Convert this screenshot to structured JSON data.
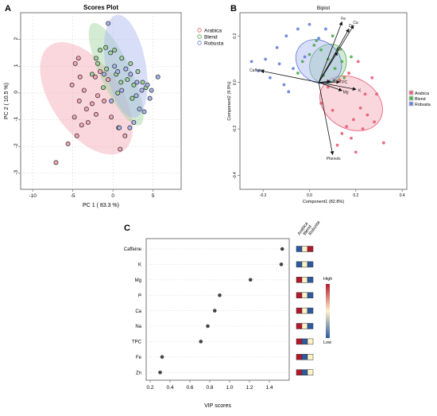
{
  "colors": {
    "arabica": "#e8546e",
    "blend": "#4aa84a",
    "robusta": "#5b79d6",
    "arabica_fill": "#f2a6b4",
    "blend_fill": "#9dd39d",
    "robusta_fill": "#a8b6ef",
    "vip_high": "#b2182b",
    "vip_mid": "#fff2c8",
    "vip_low": "#2c5aa0"
  },
  "chart_data": [
    {
      "type": "scatter",
      "panel_label": "A",
      "title": "Scores Plot",
      "xlabel": "PC 1 ( 83.3 %)",
      "ylabel": "PC 2 ( 10.5 %)",
      "xlim": [
        -11.5,
        8.5
      ],
      "ylim": [
        -3.6,
        3.0
      ],
      "xticks": [
        -10,
        -5,
        0,
        5
      ],
      "yticks": [
        -3,
        -2,
        -1,
        0,
        1,
        2
      ],
      "grid": true,
      "legend_position": "top-right",
      "legend": [
        "Arabica",
        "Blend",
        "Robusta"
      ],
      "ellipses": [
        {
          "group": "arabica",
          "cx": -3.3,
          "cy": -0.2,
          "rx": 8.6,
          "ry": 2.4,
          "angle_deg": 35
        },
        {
          "group": "blend",
          "cx": 0.4,
          "cy": 0.7,
          "rx": 3.8,
          "ry": 2.1,
          "angle_deg": 25
        },
        {
          "group": "robusta",
          "cx": 1.6,
          "cy": 1.0,
          "rx": 5.0,
          "ry": 1.95,
          "angle_deg": 10
        }
      ],
      "series": [
        {
          "group": "arabica",
          "points": [
            [
              -7.1,
              -2.6
            ],
            [
              -5.6,
              -1.9
            ],
            [
              -4.5,
              -1.6
            ],
            [
              -4.8,
              -0.9
            ],
            [
              -4.2,
              -0.3
            ],
            [
              -3.3,
              -0.6
            ],
            [
              -2.6,
              -0.4
            ],
            [
              -2.1,
              -0.8
            ],
            [
              -3.1,
              -1.1
            ],
            [
              -1.1,
              -0.3
            ],
            [
              -0.2,
              -0.9
            ],
            [
              0.7,
              -1.3
            ],
            [
              0.9,
              -2.1
            ],
            [
              1.5,
              -1.6
            ],
            [
              -1.9,
              -0.1
            ],
            [
              -4.1,
              0.6
            ],
            [
              -4.7,
              1.1
            ],
            [
              -4.3,
              1.3
            ],
            [
              -5.1,
              0.3
            ],
            [
              -3.6,
              0.1
            ],
            [
              -2.2,
              0.6
            ],
            [
              -1.6,
              0.8
            ],
            [
              -0.6,
              0.5
            ],
            [
              -3.9,
              -1.2
            ]
          ]
        },
        {
          "group": "blend",
          "points": [
            [
              -1.6,
              1.6
            ],
            [
              -0.9,
              1.7
            ],
            [
              -0.3,
              1.5
            ],
            [
              0.2,
              1.6
            ],
            [
              1.1,
              1.3
            ],
            [
              -2.6,
              0.7
            ],
            [
              -1.9,
              1.1
            ],
            [
              -0.8,
              0.9
            ],
            [
              0.4,
              0.7
            ],
            [
              1.0,
              0.4
            ],
            [
              1.8,
              0.5
            ],
            [
              2.6,
              0.3
            ],
            [
              3.1,
              0.8
            ],
            [
              3.7,
              0.4
            ],
            [
              4.1,
              0.2
            ],
            [
              2.4,
              -0.2
            ],
            [
              0.6,
              0.0
            ],
            [
              -1.2,
              0.2
            ],
            [
              -2.1,
              1.3
            ],
            [
              2.2,
              1.1
            ]
          ]
        },
        {
          "group": "robusta",
          "points": [
            [
              -0.6,
              2.6
            ],
            [
              0.2,
              1.0
            ],
            [
              0.6,
              0.8
            ],
            [
              1.6,
              0.9
            ],
            [
              2.2,
              0.7
            ],
            [
              3.0,
              0.4
            ],
            [
              3.6,
              0.1
            ],
            [
              4.3,
              0.3
            ],
            [
              4.8,
              0.1
            ],
            [
              5.6,
              0.6
            ],
            [
              3.3,
              -0.6
            ],
            [
              2.6,
              -1.1
            ],
            [
              2.1,
              -1.3
            ],
            [
              0.8,
              -1.3
            ],
            [
              -0.2,
              -0.3
            ],
            [
              3.9,
              -0.7
            ],
            [
              2.9,
              -0.1
            ],
            [
              1.1,
              0.1
            ],
            [
              -1.1,
              0.7
            ],
            [
              4.6,
              -0.2
            ]
          ]
        }
      ]
    },
    {
      "type": "scatter",
      "panel_label": "B",
      "title": "Biplot",
      "xlabel": "Component1 (82.8%)",
      "ylabel": "Component2 (9.9%)",
      "xlim": [
        -0.3,
        0.42
      ],
      "ylim": [
        -0.46,
        0.3
      ],
      "xticks": [
        -0.2,
        0.0,
        0.2,
        0.4
      ],
      "xtick_labels": [
        "-0.2",
        "0.0",
        "0.2",
        "0.4"
      ],
      "yticks": [
        -0.4,
        -0.2,
        0.0,
        0.2
      ],
      "ytick_labels": [
        "-0.4",
        "-0.2",
        "0.0",
        "0.2"
      ],
      "grid": false,
      "legend_position": "right",
      "legend": [
        "Arabica",
        "Blend",
        "Robusta"
      ],
      "origin": [
        0.04,
        0.0
      ],
      "ellipses": [
        {
          "group": "arabica",
          "cx": 0.18,
          "cy": -0.09,
          "rx": 0.26,
          "ry": 0.15,
          "angle_deg": 60
        },
        {
          "group": "blend",
          "cx": 0.08,
          "cy": 0.08,
          "rx": 0.21,
          "ry": 0.08,
          "angle_deg": 58
        },
        {
          "group": "robusta",
          "cx": 0.04,
          "cy": 0.09,
          "rx": 0.21,
          "ry": 0.11,
          "angle_deg": 52
        }
      ],
      "loadings": [
        {
          "label": "Caffeine",
          "x": -0.21,
          "y": 0.05
        },
        {
          "label": "Ca",
          "x": 0.19,
          "y": 0.245
        },
        {
          "label": "Zn",
          "x": 0.17,
          "y": 0.23
        },
        {
          "label": "Fe",
          "x": 0.14,
          "y": 0.26
        },
        {
          "label": "Na",
          "x": 0.12,
          "y": 0.13
        },
        {
          "label": "P",
          "x": 0.09,
          "y": 0.005
        },
        {
          "label": "TPC",
          "x": 0.13,
          "y": 0.002
        },
        {
          "label": "Mg",
          "x": 0.14,
          "y": -0.035
        },
        {
          "label": "K",
          "x": 0.2,
          "y": -0.03
        },
        {
          "label": "Phenols",
          "x": 0.1,
          "y": -0.31
        }
      ],
      "series": [
        {
          "group": "arabica",
          "points": [
            [
              0.22,
              -0.11
            ],
            [
              0.25,
              -0.14
            ],
            [
              0.28,
              -0.17
            ],
            [
              0.32,
              -0.26
            ],
            [
              0.18,
              -0.24
            ],
            [
              0.16,
              -0.19
            ],
            [
              0.14,
              -0.22
            ],
            [
              0.2,
              -0.3
            ],
            [
              0.12,
              -0.27
            ],
            [
              0.24,
              -0.05
            ],
            [
              0.29,
              -0.05
            ],
            [
              0.27,
              0.02
            ],
            [
              0.21,
              0.09
            ],
            [
              0.17,
              0.04
            ],
            [
              0.13,
              0.01
            ],
            [
              0.08,
              -0.02
            ],
            [
              0.05,
              -0.09
            ],
            [
              0.1,
              -0.12
            ],
            [
              0.19,
              -0.16
            ],
            [
              0.23,
              -0.2
            ]
          ]
        },
        {
          "group": "blend",
          "points": [
            [
              0.02,
              0.16
            ],
            [
              0.05,
              0.14
            ],
            [
              0.08,
              0.1
            ],
            [
              0.11,
              0.06
            ],
            [
              0.14,
              0.09
            ],
            [
              0.0,
              0.12
            ],
            [
              -0.03,
              0.09
            ],
            [
              0.06,
              0.03
            ],
            [
              0.1,
              0.2
            ],
            [
              0.15,
              0.02
            ],
            [
              -0.05,
              0.04
            ],
            [
              0.03,
              0.18
            ],
            [
              0.18,
              0.11
            ],
            [
              0.12,
              0.14
            ]
          ]
        },
        {
          "group": "robusta",
          "points": [
            [
              -0.19,
              0.1
            ],
            [
              -0.22,
              0.05
            ],
            [
              -0.14,
              0.15
            ],
            [
              -0.1,
              0.2
            ],
            [
              -0.05,
              0.23
            ],
            [
              0.0,
              0.25
            ],
            [
              -0.17,
              0.02
            ],
            [
              -0.11,
              -0.01
            ],
            [
              -0.07,
              0.06
            ],
            [
              -0.02,
              0.11
            ],
            [
              0.04,
              0.19
            ],
            [
              0.07,
              0.23
            ],
            [
              -0.13,
              0.08
            ],
            [
              -0.25,
              0.09
            ],
            [
              -0.09,
              -0.04
            ]
          ]
        }
      ]
    },
    {
      "type": "dot",
      "panel_label": "C",
      "xlabel": "VIP scores",
      "xlim": [
        0.16,
        1.6
      ],
      "xticks": [
        0.2,
        0.4,
        0.6,
        0.8,
        1.0,
        1.2,
        1.4
      ],
      "xtick_labels": [
        "0.2",
        "0.4",
        "0.6",
        "0.8",
        "1.0",
        "1.2",
        "1.4"
      ],
      "categories": [
        "Caffeine",
        "K",
        "Mg",
        "P",
        "Ca",
        "Na",
        "TPC",
        "Fe",
        "Zn"
      ],
      "values": [
        1.53,
        1.52,
        1.21,
        0.9,
        0.85,
        0.78,
        0.71,
        0.32,
        0.3
      ],
      "heatmap_columns": [
        "Arabica",
        "Blend",
        "Robusta"
      ],
      "heatmap_levels": [
        [
          "low",
          "mid",
          "high"
        ],
        [
          "low",
          "mid",
          "low"
        ],
        [
          "high",
          "mid",
          "low"
        ],
        [
          "high",
          "mid",
          "low"
        ],
        [
          "high",
          "mid",
          "low"
        ],
        [
          "high",
          "mid",
          "low"
        ],
        [
          "high",
          "low",
          "mid"
        ],
        [
          "high",
          "low",
          "mid"
        ],
        [
          "high",
          "low",
          "mid"
        ]
      ],
      "colorbar": {
        "high_label": "High",
        "low_label": "Low"
      }
    }
  ]
}
